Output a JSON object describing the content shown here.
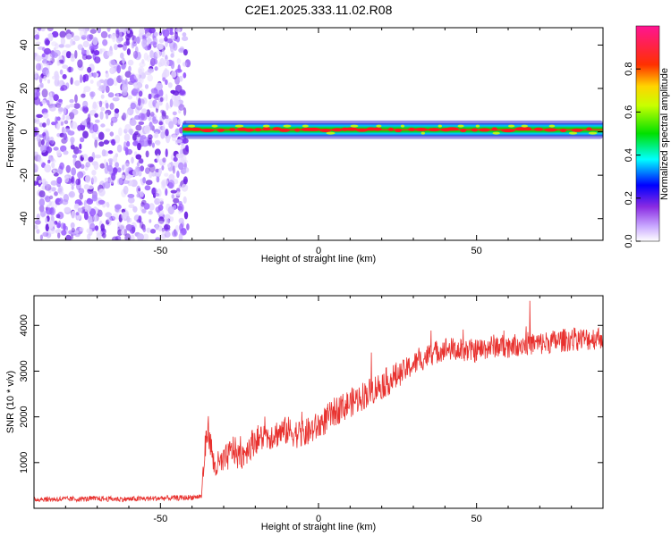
{
  "title": "C2E1.2025.333.11.02.R08",
  "colors": {
    "snr_line": "#e8312e",
    "frame": "#000000",
    "background": "#ffffff"
  },
  "chart_data": [
    {
      "type": "heatmap",
      "xlabel": "Height of straight line (km)",
      "ylabel": "Frequency (Hz)",
      "xlim": [
        -90,
        90
      ],
      "ylim": [
        -50,
        48
      ],
      "xticks": [
        -50,
        0,
        50
      ],
      "xtick_labels": [
        "-50",
        "0",
        "50"
      ],
      "yticks": [
        -40,
        -20,
        0,
        20,
        40
      ],
      "ytick_labels": [
        "-40",
        "-20",
        "0",
        "20",
        "40"
      ],
      "colorbar": {
        "label": "Normalized spectral amplitude",
        "range": [
          0,
          1
        ],
        "ticks": [
          0.0,
          0.2,
          0.4,
          0.6,
          0.8
        ],
        "tick_labels": [
          "0.0",
          "0.2",
          "0.4",
          "0.6",
          "0.8"
        ],
        "colormap": "rainbow (white-violet-blue-cyan-green-yellow-red-magenta)"
      },
      "regions": [
        {
          "x_range": [
            -90,
            -43
          ],
          "description_level": "noise",
          "amplitude_approx": 0.12
        },
        {
          "x_range": [
            -43,
            90
          ],
          "band_center_hz": 1,
          "band_halfwidth_hz": 3,
          "amplitude_approx": 0.85
        }
      ]
    },
    {
      "type": "line",
      "xlabel": "Height of straight line (km)",
      "ylabel": "SNR (10 * v/v)",
      "xlim": [
        -90,
        90
      ],
      "ylim": [
        0,
        4650
      ],
      "xticks": [
        -50,
        0,
        50
      ],
      "xtick_labels": [
        "-50",
        "0",
        "50"
      ],
      "yticks": [
        1000,
        2000,
        3000,
        4000
      ],
      "ytick_labels": [
        "1000",
        "2000",
        "3000",
        "4000"
      ],
      "series": [
        {
          "x": [
            -90,
            -80,
            -70,
            -60,
            -50,
            -42,
            -37,
            -36,
            -35,
            -33,
            -30,
            -27,
            -25,
            -20,
            -15,
            -10,
            -5,
            0,
            5,
            10,
            15,
            20,
            25,
            30,
            35,
            40,
            45,
            50,
            55,
            60,
            65,
            70,
            75,
            80,
            85,
            90
          ],
          "values": [
            200,
            200,
            210,
            200,
            220,
            230,
            260,
            1200,
            1800,
            900,
            1000,
            1300,
            1100,
            1500,
            1600,
            1700,
            1600,
            1800,
            2100,
            2300,
            2500,
            2700,
            2900,
            3150,
            3350,
            3500,
            3450,
            3450,
            3550,
            3550,
            3600,
            3600,
            3650,
            3700,
            3700,
            3750
          ]
        }
      ]
    }
  ]
}
